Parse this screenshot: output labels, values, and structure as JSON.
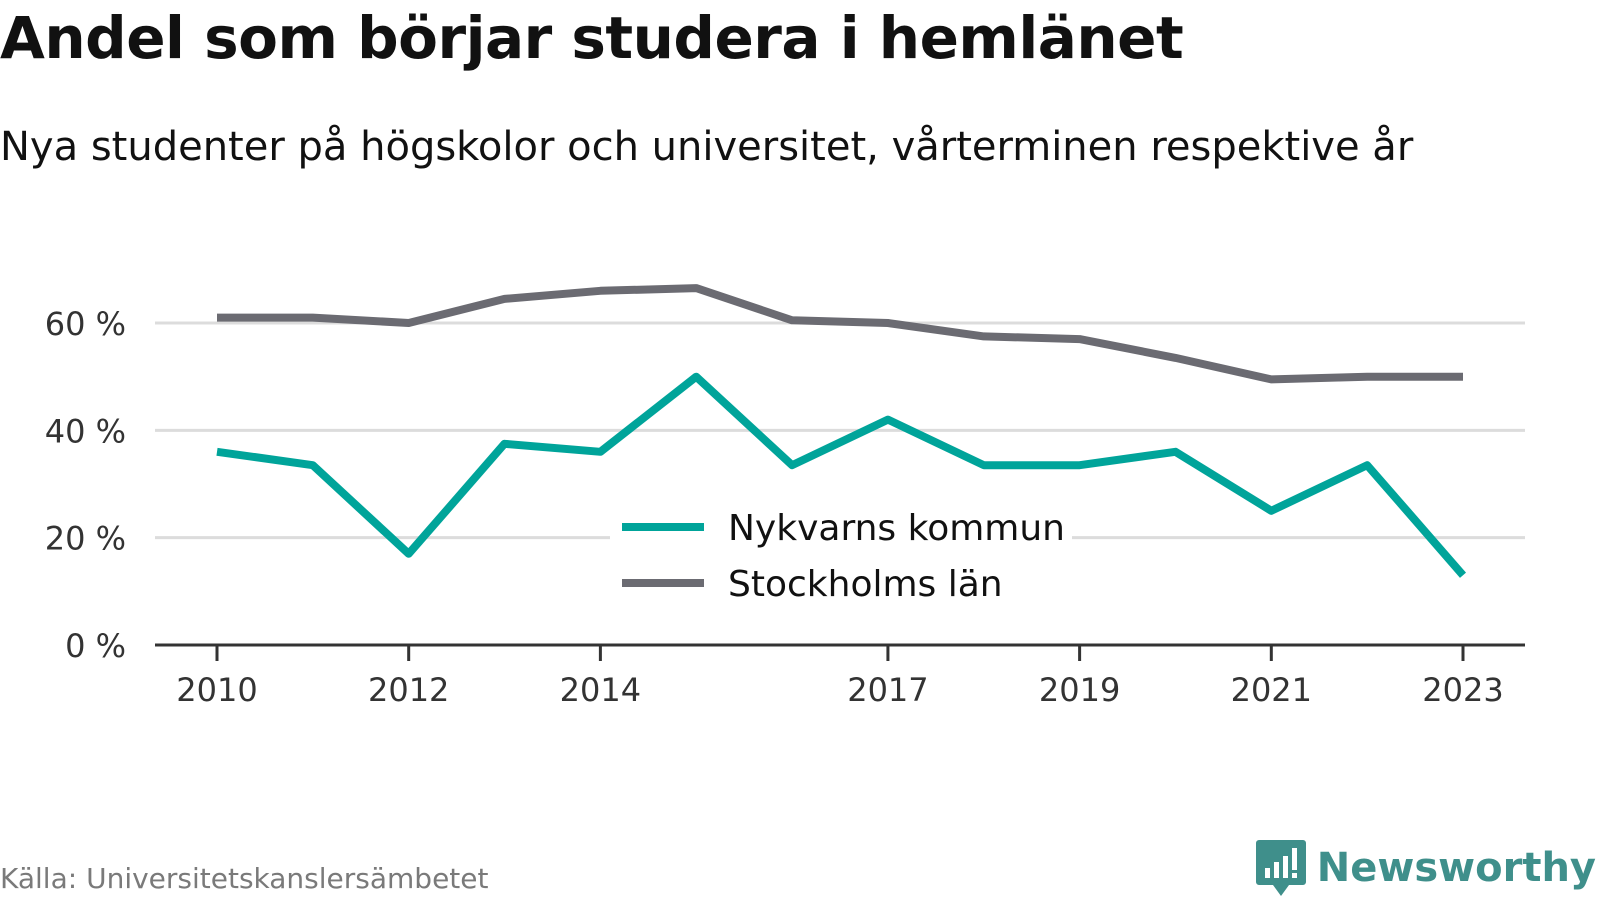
{
  "header": {
    "title": "Andel som börjar studera i hemlänet",
    "subtitle": "Nya studenter på högskolor och universitet, vårterminen respektive år"
  },
  "footer": {
    "source": "Källa: Universitetskanslersämbetet",
    "brand": "Newsworthy",
    "brand_icon": "chart-speech-bubble-icon",
    "brand_color": "#3f8f8b"
  },
  "chart_data": {
    "type": "line",
    "title": "Andel som börjar studera i hemlänet",
    "subtitle": "Nya studenter på högskolor och universitet, vårterminen respektive år",
    "xlabel": "",
    "ylabel": "",
    "x": [
      2010,
      2011,
      2012,
      2013,
      2014,
      2015,
      2016,
      2017,
      2018,
      2019,
      2020,
      2021,
      2022,
      2023
    ],
    "x_ticks": [
      2010,
      2012,
      2014,
      2017,
      2019,
      2021,
      2023
    ],
    "x_tick_labels": [
      "2010",
      "2012",
      "2014",
      "2017",
      "2019",
      "2021",
      "2023"
    ],
    "y_ticks": [
      0,
      20,
      40,
      60
    ],
    "y_tick_labels": [
      "0 %",
      "20 %",
      "40 %",
      "60 %"
    ],
    "ylim": [
      0,
      70
    ],
    "grid": true,
    "legend_position": "center",
    "series": [
      {
        "name": "Nykvarns kommun",
        "color": "#00a49a",
        "values": [
          36,
          33.5,
          17,
          37.5,
          36,
          50,
          33.5,
          42,
          33.5,
          33.5,
          36,
          25,
          33.5,
          13
        ]
      },
      {
        "name": "Stockholms län",
        "color": "#6b6b72",
        "values": [
          61,
          61,
          60,
          64.5,
          66,
          66.5,
          60.5,
          60,
          57.5,
          57,
          53.5,
          49.5,
          50,
          50
        ]
      }
    ]
  }
}
